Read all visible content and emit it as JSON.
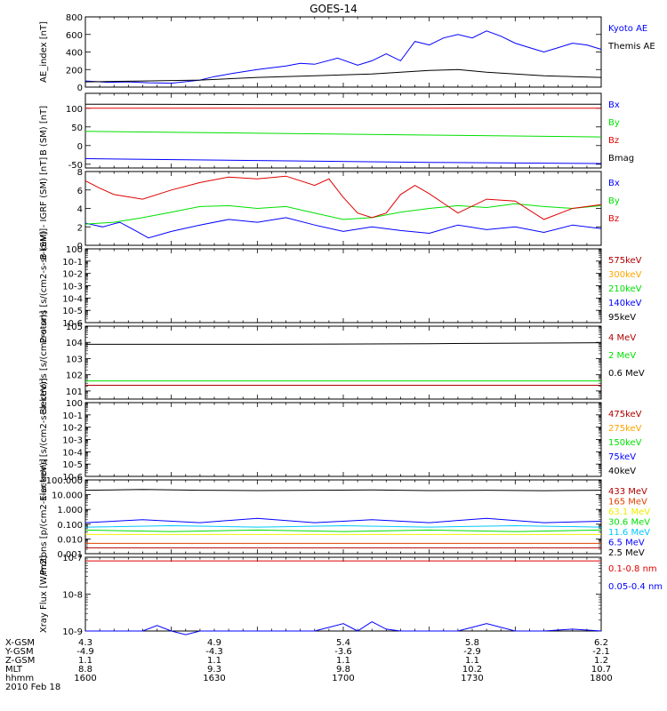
{
  "title": "GOES-14",
  "colors": {
    "black": "#000000",
    "blue": "#0000ff",
    "green": "#00e000",
    "red": "#e00000",
    "orange": "#ffa500",
    "gold": "#eeee00",
    "cyan": "#00c8ff",
    "darkred": "#b00000"
  },
  "chart_data": [
    {
      "type": "line",
      "ylabel": "AE_index [nT]",
      "ylim": [
        0,
        800
      ],
      "yticks": [
        "0",
        "200",
        "400",
        "600",
        "800"
      ],
      "yticks_val": [
        0,
        200,
        400,
        600,
        800
      ],
      "scale": "linear",
      "series": [
        {
          "name": "Kyoto AE",
          "color": "#0000ff",
          "x": [
            0,
            8,
            15,
            22,
            30,
            40,
            45,
            52,
            60,
            70,
            75,
            80,
            88,
            95,
            100,
            105,
            110,
            115,
            120,
            125,
            130,
            135,
            140,
            145,
            150,
            155,
            160,
            165,
            170,
            175,
            180
          ],
          "values": [
            70,
            55,
            60,
            50,
            45,
            80,
            120,
            160,
            200,
            240,
            270,
            260,
            330,
            250,
            300,
            380,
            300,
            520,
            480,
            560,
            600,
            560,
            640,
            580,
            500,
            450,
            400,
            450,
            500,
            480,
            430
          ]
        },
        {
          "name": "Themis AE",
          "color": "#000000",
          "x": [
            0,
            20,
            40,
            60,
            80,
            100,
            110,
            120,
            130,
            140,
            150,
            160,
            170,
            180
          ],
          "values": [
            60,
            70,
            80,
            110,
            130,
            150,
            170,
            190,
            200,
            170,
            150,
            130,
            120,
            110
          ]
        }
      ]
    },
    {
      "type": "line",
      "ylabel": "B (SM) [nT]",
      "ylim": [
        -60,
        140
      ],
      "yticks": [
        "-50",
        "0",
        "50",
        "100"
      ],
      "yticks_val": [
        -50,
        0,
        50,
        100
      ],
      "scale": "linear",
      "series": [
        {
          "name": "Bx",
          "color": "#0000ff",
          "x": [
            0,
            60,
            120,
            180
          ],
          "values": [
            -35,
            -40,
            -45,
            -48
          ]
        },
        {
          "name": "By",
          "color": "#00e000",
          "x": [
            0,
            60,
            120,
            180
          ],
          "values": [
            38,
            33,
            28,
            23
          ]
        },
        {
          "name": "Bz",
          "color": "#e00000",
          "x": [
            0,
            60,
            120,
            180
          ],
          "values": [
            100,
            100,
            100,
            100
          ]
        },
        {
          "name": "Bmag",
          "color": "#000000",
          "x": [
            0,
            60,
            120,
            180
          ],
          "values": [
            111,
            110,
            110,
            111
          ]
        }
      ]
    },
    {
      "type": "line",
      "ylabel": "B (SM) - IGRF (SM) [nT]",
      "ylim": [
        0,
        8
      ],
      "yticks": [
        "0",
        "2",
        "4",
        "6",
        "8"
      ],
      "yticks_val": [
        0,
        2,
        4,
        6,
        8
      ],
      "scale": "linear",
      "series": [
        {
          "name": "Bx",
          "color": "#0000ff",
          "x": [
            0,
            6,
            12,
            18,
            22,
            30,
            40,
            50,
            60,
            70,
            80,
            90,
            100,
            110,
            120,
            130,
            140,
            150,
            160,
            170,
            180
          ],
          "values": [
            2.4,
            2.0,
            2.5,
            1.5,
            0.8,
            1.5,
            2.2,
            2.8,
            2.5,
            3.0,
            2.2,
            1.5,
            2.0,
            1.6,
            1.3,
            2.2,
            1.7,
            2.0,
            1.4,
            2.2,
            1.8
          ]
        },
        {
          "name": "By",
          "color": "#00e000",
          "x": [
            0,
            10,
            20,
            30,
            40,
            50,
            60,
            70,
            80,
            90,
            100,
            110,
            120,
            130,
            140,
            150,
            160,
            170,
            180
          ],
          "values": [
            2.3,
            2.5,
            3.0,
            3.6,
            4.2,
            4.3,
            4.0,
            4.2,
            3.5,
            2.8,
            3.0,
            3.6,
            4.0,
            4.3,
            4.1,
            4.5,
            4.2,
            4.0,
            4.3
          ]
        },
        {
          "name": "Bz",
          "color": "#e00000",
          "x": [
            0,
            5,
            10,
            20,
            30,
            40,
            50,
            60,
            70,
            80,
            85,
            90,
            95,
            100,
            105,
            110,
            115,
            120,
            130,
            140,
            150,
            160,
            170,
            180
          ],
          "values": [
            7.0,
            6.2,
            5.5,
            5.0,
            6.0,
            6.8,
            7.4,
            7.2,
            7.5,
            6.5,
            7.2,
            5.2,
            3.5,
            3.0,
            3.5,
            5.5,
            6.5,
            5.6,
            3.5,
            5.0,
            4.8,
            2.8,
            4.0,
            4.4
          ]
        }
      ]
    },
    {
      "type": "line",
      "ylabel": "Protons [s/(cm2-s-sr-keV)]",
      "ylim_log": [
        -6,
        0
      ],
      "yticks": [
        "10-6",
        "10-5",
        "10-4",
        "10-3",
        "10-2",
        "10-1",
        "100"
      ],
      "yticks_val": [
        -6,
        -5,
        -4,
        -3,
        -2,
        -1,
        0
      ],
      "scale": "log",
      "series": [
        {
          "name": "575keV",
          "color": "#b00000",
          "x": [],
          "values": []
        },
        {
          "name": "300keV",
          "color": "#ffa500",
          "x": [],
          "values": []
        },
        {
          "name": "210keV",
          "color": "#00e000",
          "x": [],
          "values": []
        },
        {
          "name": "140keV",
          "color": "#0000ff",
          "x": [],
          "values": []
        },
        {
          "name": "95keV",
          "color": "#000000",
          "x": [],
          "values": []
        }
      ]
    },
    {
      "type": "line",
      "ylabel": "Electrons [s/(cm2-s-sr)]",
      "ylim_log": [
        0.5,
        5
      ],
      "yticks": [
        "101",
        "102",
        "103",
        "104",
        "105"
      ],
      "yticks_val": [
        1,
        2,
        3,
        4,
        5
      ],
      "scale": "log",
      "series": [
        {
          "name": "4 MeV",
          "color": "#b00000",
          "x": [
            0,
            60,
            120,
            180
          ],
          "values": [
            1.35,
            1.35,
            1.35,
            1.35
          ]
        },
        {
          "name": "2 MeV",
          "color": "#00e000",
          "x": [
            0,
            60,
            120,
            180
          ],
          "values": [
            1.62,
            1.62,
            1.62,
            1.62
          ]
        },
        {
          "name": "0.6 MeV",
          "color": "#000000",
          "x": [
            0,
            60,
            120,
            180
          ],
          "values": [
            3.88,
            3.88,
            3.92,
            3.98
          ]
        }
      ]
    },
    {
      "type": "line",
      "ylabel": "Electrons [s/(cm2-s-sr-keV)]",
      "ylim_log": [
        -6,
        0
      ],
      "yticks": [
        "10-6",
        "10-5",
        "10-4",
        "10-3",
        "10-2",
        "10-1",
        "100"
      ],
      "yticks_val": [
        -6,
        -5,
        -4,
        -3,
        -2,
        -1,
        0
      ],
      "scale": "log",
      "series": [
        {
          "name": "475keV",
          "color": "#b00000",
          "x": [],
          "values": []
        },
        {
          "name": "275keV",
          "color": "#ffa500",
          "x": [],
          "values": []
        },
        {
          "name": "150keV",
          "color": "#00e000",
          "x": [],
          "values": []
        },
        {
          "name": "75keV",
          "color": "#0000ff",
          "x": [],
          "values": []
        },
        {
          "name": "40keV",
          "color": "#000000",
          "x": [],
          "values": []
        }
      ]
    },
    {
      "type": "line",
      "ylabel": "Protons [p/(cm2-s-sr-keV)]",
      "ylim_log": [
        -3,
        2
      ],
      "yticks": [
        "0.001",
        "0.010",
        "0.100",
        "1.000",
        "10.000",
        "100.000"
      ],
      "yticks_val": [
        -3,
        -2,
        -1,
        0,
        1,
        2
      ],
      "scale": "log",
      "series": [
        {
          "name": "433 MeV",
          "color": "#b00000",
          "x": [
            0,
            60,
            120,
            180
          ],
          "values": [
            -2.6,
            -2.6,
            -2.6,
            -2.6
          ]
        },
        {
          "name": "165 MeV",
          "color": "#e04000",
          "x": [
            0,
            60,
            120,
            180
          ],
          "values": [
            -2.3,
            -2.3,
            -2.3,
            -2.3
          ]
        },
        {
          "name": "63.1 MeV",
          "color": "#eeee00",
          "x": [
            0,
            60,
            120,
            180
          ],
          "values": [
            -1.7,
            -1.7,
            -1.7,
            -1.7
          ]
        },
        {
          "name": "30.6 MeV",
          "color": "#00e000",
          "x": [
            0,
            30,
            60,
            90,
            120,
            150,
            180
          ],
          "values": [
            -1.4,
            -1.5,
            -1.4,
            -1.5,
            -1.4,
            -1.5,
            -1.4
          ]
        },
        {
          "name": "11.6 MeV",
          "color": "#00c8ff",
          "x": [
            0,
            30,
            60,
            90,
            120,
            150,
            180
          ],
          "values": [
            -1.2,
            -1.1,
            -1.2,
            -1.1,
            -1.2,
            -1.1,
            -1.2
          ]
        },
        {
          "name": "6.5 MeV",
          "color": "#0000ff",
          "x": [
            0,
            20,
            40,
            60,
            80,
            100,
            120,
            140,
            160,
            180
          ],
          "values": [
            -0.9,
            -0.7,
            -0.9,
            -0.6,
            -0.9,
            -0.7,
            -0.9,
            -0.6,
            -0.9,
            -0.8
          ]
        },
        {
          "name": "2.5 MeV",
          "color": "#000000",
          "x": [
            0,
            20,
            40,
            60,
            80,
            100,
            120,
            140,
            160,
            180
          ],
          "values": [
            1.3,
            1.35,
            1.3,
            1.28,
            1.3,
            1.32,
            1.28,
            1.3,
            1.27,
            1.3
          ]
        }
      ]
    },
    {
      "type": "line",
      "ylabel": "Xray Flux [W/m2]",
      "ylim_log": [
        -9,
        -7
      ],
      "yticks": [
        "10-9",
        "10-8",
        "10-7"
      ],
      "yticks_val": [
        -9,
        -8,
        -7
      ],
      "scale": "log",
      "series": [
        {
          "name": "0.1-0.8 nm",
          "color": "#e00000",
          "x": [
            0,
            60,
            120,
            180
          ],
          "values": [
            -7.1,
            -7.1,
            -7.1,
            -7.1
          ]
        },
        {
          "name": "0.05-0.4 nm",
          "color": "#0000ff",
          "x": [
            0,
            20,
            25,
            30,
            35,
            40,
            60,
            80,
            90,
            95,
            100,
            105,
            110,
            130,
            140,
            150,
            160,
            170,
            180
          ],
          "values": [
            -9,
            -9,
            -8.85,
            -9,
            -9.1,
            -9,
            -9,
            -9,
            -8.8,
            -9,
            -8.75,
            -8.95,
            -9,
            -9,
            -8.8,
            -9,
            -9,
            -8.95,
            -9
          ]
        }
      ]
    }
  ],
  "x_axis": {
    "labels": [
      "X-GSM",
      "Y-GSM",
      "Z-GSM",
      "MLT",
      "hhmm"
    ],
    "columns": [
      {
        "values": [
          "4.3",
          "-4.9",
          "1.1",
          "8.8",
          "1600"
        ]
      },
      {
        "values": [
          "4.9",
          "-4.3",
          "1.1",
          "9.3",
          "1630"
        ]
      },
      {
        "values": [
          "5.4",
          "-3.6",
          "1.1",
          "9.8",
          "1700"
        ]
      },
      {
        "values": [
          "5.8",
          "-2.9",
          "1.1",
          "10.2",
          "1730"
        ]
      },
      {
        "values": [
          "6.2",
          "-2.1",
          "1.2",
          "10.7",
          "1800"
        ]
      }
    ],
    "date": "2010 Feb 18"
  }
}
